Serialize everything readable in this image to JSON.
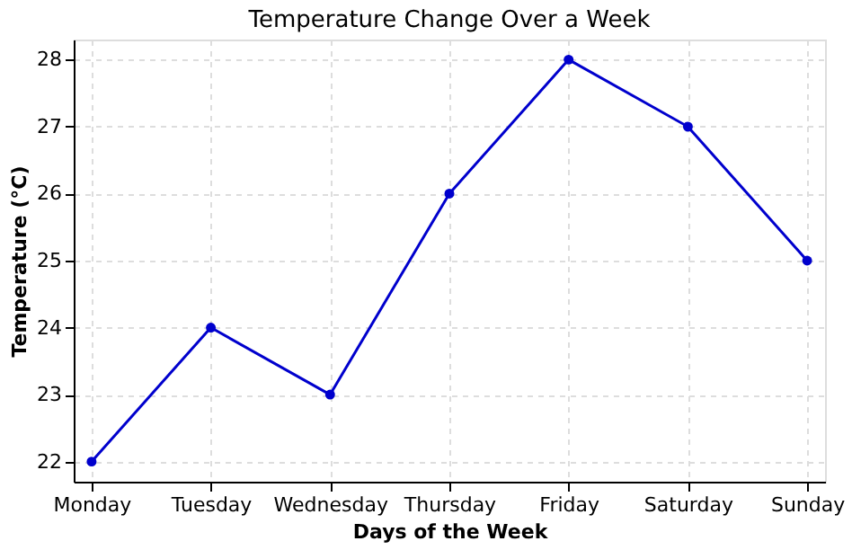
{
  "chart_data": {
    "type": "line",
    "title": "Temperature Change Over a Week",
    "xlabel": "Days of the Week",
    "ylabel": "Temperature (°C)",
    "categories": [
      "Monday",
      "Tuesday",
      "Wednesday",
      "Thursday",
      "Friday",
      "Saturday",
      "Sunday"
    ],
    "series": [
      {
        "color": "#0000cd",
        "values": [
          22,
          24,
          23,
          26,
          28,
          27,
          25
        ]
      }
    ],
    "ylim": [
      21.7,
      28.3
    ],
    "yticks": [
      22,
      23,
      24,
      25,
      26,
      27,
      28
    ],
    "grid": true,
    "marker": "circle",
    "line_style": "solid"
  }
}
